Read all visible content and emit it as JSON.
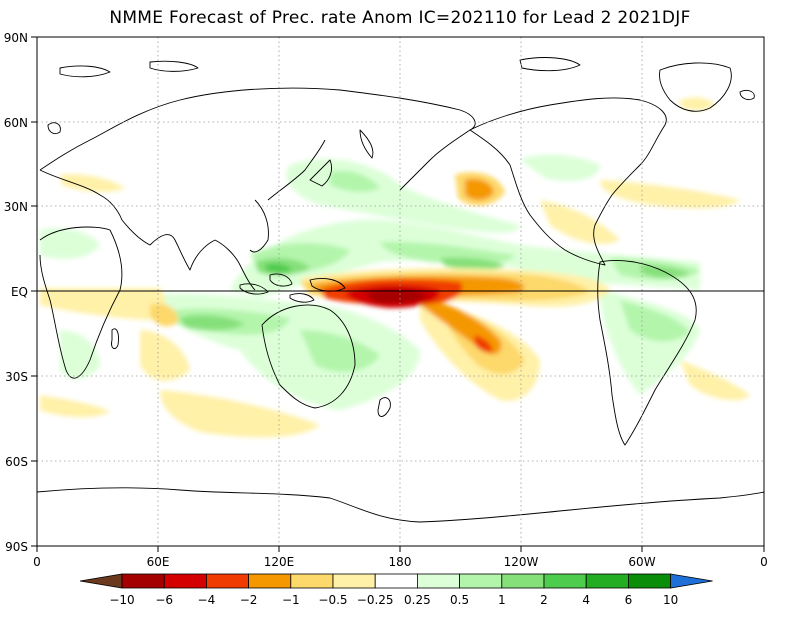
{
  "title": "NMME Forecast of Prec. rate Anom IC=202110 for Lead 2 2021DJF",
  "y_axis_labels": [
    "90N",
    "60N",
    "30N",
    "EQ",
    "30S",
    "60S",
    "90S"
  ],
  "x_axis_labels": [
    "0",
    "60E",
    "120E",
    "180",
    "120W",
    "60W",
    "0"
  ],
  "colorbar": {
    "labels": [
      "-10",
      "-6",
      "-4",
      "-2",
      "-1",
      "-0.5",
      "-0.25",
      "0.25",
      "0.5",
      "1",
      "2",
      "4",
      "6",
      "10"
    ],
    "colors": [
      "#6b3a1e",
      "#a50000",
      "#d40000",
      "#f03c00",
      "#f59800",
      "#fdd86a",
      "#fff1a8",
      "#ffffff",
      "#dcffd8",
      "#b4f5ac",
      "#86e07a",
      "#4ecc4e",
      "#23ad23",
      "#0a8e0a",
      "#1f6fd8"
    ]
  }
}
